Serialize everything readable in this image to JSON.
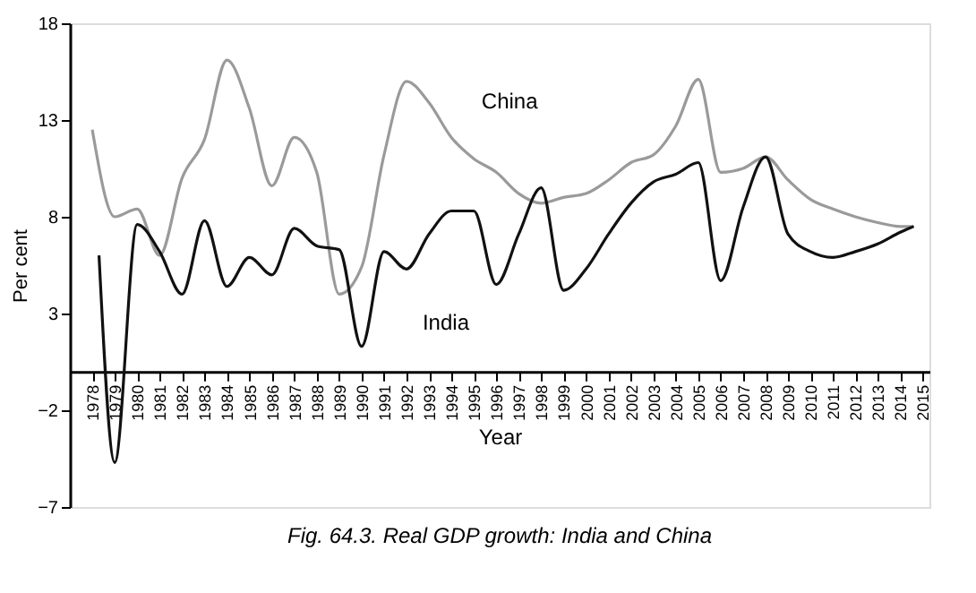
{
  "chart_data": {
    "type": "line",
    "title": "Fig. 64.3. Real GDP growth: India and China",
    "xlabel": "Year",
    "ylabel": "Per cent",
    "xlim": [
      1977,
      2015.3
    ],
    "xticks": [
      1978,
      1979,
      1980,
      1981,
      1982,
      1983,
      1984,
      1985,
      1986,
      1987,
      1988,
      1989,
      1990,
      1991,
      1992,
      1993,
      1994,
      1995,
      1996,
      1997,
      1998,
      1999,
      2000,
      2001,
      2002,
      2003,
      2004,
      2005,
      2006,
      2007,
      2008,
      2009,
      2010,
      2011,
      2012,
      2013,
      2014,
      2015
    ],
    "ylim": [
      -7,
      18
    ],
    "yticks": [
      18,
      13,
      8,
      3,
      -2,
      -7
    ],
    "grid": false,
    "legend": false,
    "marker": "none",
    "line_style": "solid",
    "series": [
      {
        "name": "China",
        "color": "#9a9a9a",
        "x": [
          1978,
          1979,
          1980,
          1981,
          1982,
          1983,
          1984,
          1985,
          1986,
          1987,
          1988,
          1989,
          1990,
          1991,
          1992,
          1993,
          1994,
          1995,
          1996,
          1997,
          1998,
          1999,
          2000,
          2001,
          2002,
          2003,
          2004,
          2005,
          2006,
          2007,
          2008,
          2009,
          2010,
          2011,
          2012,
          2013,
          2014,
          2014.6
        ],
        "values": [
          12.5,
          8,
          8.4,
          6,
          10,
          12,
          16.1,
          13.6,
          9.6,
          12.1,
          10.3,
          4,
          5.4,
          11.2,
          15,
          13.9,
          12.1,
          11,
          10.3,
          9.2,
          8.7,
          9,
          9.2,
          9.9,
          10.8,
          11.2,
          12.7,
          15.1,
          10.3,
          10.5,
          11.1,
          9.9,
          8.9,
          8.4,
          8,
          7.7,
          7.5,
          7.5
        ]
      },
      {
        "name": "India",
        "color": "#111111",
        "x": [
          1978.3,
          1979,
          1980,
          1981,
          1982,
          1983,
          1984,
          1985,
          1986,
          1987,
          1988,
          1989,
          1990,
          1991,
          1992,
          1993,
          1994,
          1995,
          1996,
          1997,
          1998,
          1999,
          2000,
          2001,
          2002,
          2003,
          2004,
          2005,
          2006,
          2007,
          2008,
          2009,
          2010,
          2011,
          2012,
          2013,
          2014,
          2014.6
        ],
        "values": [
          6,
          -4.7,
          7.6,
          6.2,
          4,
          7.8,
          4.4,
          5.9,
          5,
          7.4,
          6.5,
          6.3,
          1.3,
          6.2,
          5.3,
          7.1,
          8.3,
          8.3,
          4.5,
          7.1,
          9.5,
          4.2,
          5.3,
          7.1,
          8.7,
          9.8,
          10.2,
          10.8,
          4.7,
          8.5,
          11.1,
          7.1,
          6.2,
          5.9,
          6.2,
          6.6,
          7.2,
          7.5
        ]
      }
    ]
  }
}
